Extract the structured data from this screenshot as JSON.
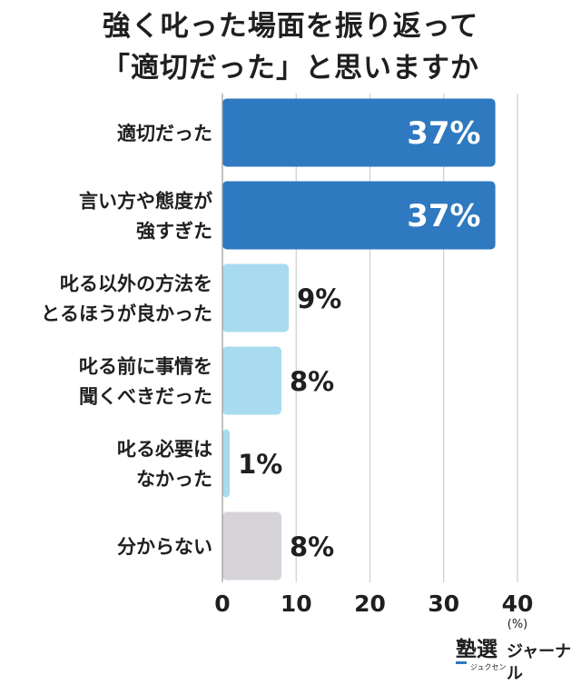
{
  "chart_data": {
    "type": "bar",
    "orientation": "horizontal",
    "title_lines": [
      "強く叱った場面を振り返って",
      "「適切だった」と思いますか"
    ],
    "categories": [
      [
        "適切だった"
      ],
      [
        "言い方や態度が",
        "強すぎた"
      ],
      [
        "叱る以外の方法を",
        "とるほうが良かった"
      ],
      [
        "叱る前に事情を",
        "聞くべきだった"
      ],
      [
        "叱る必要は",
        "なかった"
      ],
      [
        "分からない"
      ]
    ],
    "values": [
      37,
      37,
      9,
      8,
      1,
      8
    ],
    "value_labels": [
      "37%",
      "37%",
      "9%",
      "8%",
      "1%",
      "8%"
    ],
    "value_label_inside": [
      true,
      true,
      false,
      false,
      false,
      false
    ],
    "bar_colors": [
      "#2e79c0",
      "#2e79c0",
      "#a8dbef",
      "#a8dbef",
      "#a8dbef",
      "#d5d3d8"
    ],
    "xlim": [
      0,
      40
    ],
    "xticks": [
      "0",
      "10",
      "20",
      "30",
      "40"
    ],
    "x_unit": "(%)",
    "grid": true,
    "legend": "none"
  },
  "logo": {
    "mark": "塾選",
    "reading": "ジュクセン",
    "name": "ジャーナル"
  },
  "colors": {
    "dark_blue": "#2e79c0",
    "light_blue": "#a8dbef",
    "gray": "#d5d3d8",
    "text": "#1f1f1f",
    "grid": "#cfcfcf"
  }
}
